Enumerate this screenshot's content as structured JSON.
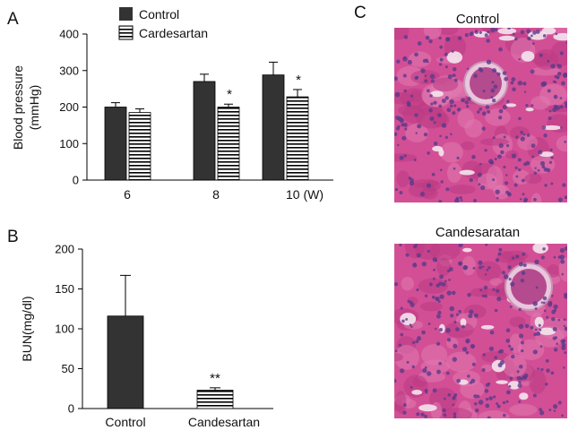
{
  "panels": {
    "a_label": "A",
    "b_label": "B",
    "c_label": "C"
  },
  "legend": {
    "control": "Control",
    "cand": "Cardesartan"
  },
  "histology": {
    "top_title": "Control",
    "bottom_title": "Candesaratan"
  },
  "colors": {
    "control_fill": "#333333",
    "stripe": "#000000",
    "tissue_pink": "#d24f95",
    "tissue_nucleus": "#5a3a8a",
    "tissue_lumen": "#f4e6ee"
  },
  "chart_data": [
    {
      "id": "A",
      "type": "bar",
      "ylabel_lines": [
        "Blood pressure",
        "(mmHg)"
      ],
      "categories": [
        "6",
        "8",
        "10 (W)"
      ],
      "ylim": [
        0,
        400
      ],
      "yticks": [
        0,
        100,
        200,
        300,
        400
      ],
      "legend_position": "top",
      "series": [
        {
          "name": "Control",
          "pattern": "solid",
          "values": [
            200,
            270,
            288
          ],
          "errors": [
            12,
            20,
            35
          ],
          "markers": [
            "",
            "",
            ""
          ]
        },
        {
          "name": "Cardesartan",
          "pattern": "striped",
          "values": [
            185,
            200,
            228
          ],
          "errors": [
            10,
            8,
            20
          ],
          "markers": [
            "",
            "*",
            "*"
          ]
        }
      ]
    },
    {
      "id": "B",
      "type": "bar",
      "ylabel": "BUN(mg/dl)",
      "categories": [
        "Control",
        "Candesartan"
      ],
      "ylim": [
        0,
        200
      ],
      "yticks": [
        0,
        50,
        100,
        150,
        200
      ],
      "series": [
        {
          "name": "BUN",
          "values": [
            116,
            23
          ],
          "errors": [
            51,
            3
          ],
          "patterns": [
            "solid",
            "striped"
          ],
          "markers": [
            "",
            "**"
          ]
        }
      ]
    }
  ]
}
